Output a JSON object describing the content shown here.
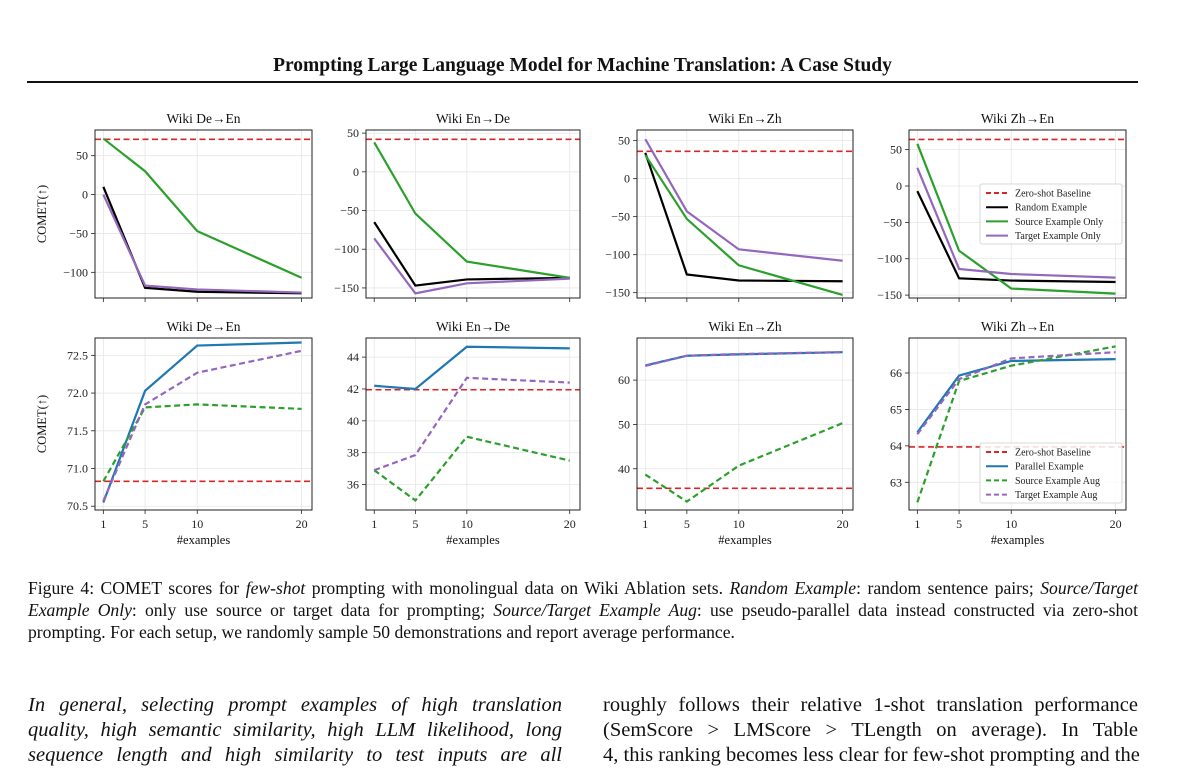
{
  "header": {
    "title": "Prompting Large Language Model for Machine Translation: A Case Study"
  },
  "colors": {
    "baseline": "#d62728",
    "random": "#000000",
    "source": "#2ca02c",
    "target": "#9467bd",
    "parallel": "#1f77b4"
  },
  "chart_data": [
    {
      "type": "line",
      "title": "Wiki De→En",
      "ylabel": "COMET(↑)",
      "xlabel": "",
      "x": [
        1,
        5,
        10,
        20
      ],
      "ylim": [
        -133,
        83
      ],
      "yticks": [
        -100,
        -50,
        0,
        50
      ],
      "yticklabels": [
        "−100",
        "−50",
        "0",
        "50"
      ],
      "grid": true,
      "series": [
        {
          "name": "Zero-shot Baseline",
          "style": "dashed",
          "color": "#d62728",
          "baseline": 71
        },
        {
          "name": "Random Example",
          "style": "solid",
          "color": "#000000",
          "values": [
            10,
            -120,
            -125,
            -127
          ]
        },
        {
          "name": "Source Example Only",
          "style": "solid",
          "color": "#2ca02c",
          "values": [
            72,
            30,
            -47,
            -107
          ]
        },
        {
          "name": "Target Example Only",
          "style": "solid",
          "color": "#9467bd",
          "values": [
            0,
            -117,
            -122,
            -126
          ]
        }
      ]
    },
    {
      "type": "line",
      "title": "Wiki En→De",
      "ylabel": "",
      "xlabel": "",
      "x": [
        1,
        5,
        10,
        20
      ],
      "ylim": [
        -163,
        54
      ],
      "yticks": [
        -150,
        -100,
        -50,
        0,
        50
      ],
      "yticklabels": [
        "−150",
        "−100",
        "−50",
        "0",
        "50"
      ],
      "grid": true,
      "series": [
        {
          "name": "Zero-shot Baseline",
          "style": "dashed",
          "color": "#d62728",
          "baseline": 42
        },
        {
          "name": "Random Example",
          "style": "solid",
          "color": "#000000",
          "values": [
            -65,
            -147,
            -139,
            -137
          ]
        },
        {
          "name": "Source Example Only",
          "style": "solid",
          "color": "#2ca02c",
          "values": [
            38,
            -54,
            -116,
            -137
          ]
        },
        {
          "name": "Target Example Only",
          "style": "solid",
          "color": "#9467bd",
          "values": [
            -86,
            -157,
            -144,
            -138
          ]
        }
      ]
    },
    {
      "type": "line",
      "title": "Wiki En→Zh",
      "ylabel": "",
      "xlabel": "",
      "x": [
        1,
        5,
        10,
        20
      ],
      "ylim": [
        -157,
        64
      ],
      "yticks": [
        -150,
        -100,
        -50,
        0,
        50
      ],
      "yticklabels": [
        "−150",
        "−100",
        "−50",
        "0",
        "50"
      ],
      "grid": true,
      "series": [
        {
          "name": "Zero-shot Baseline",
          "style": "dashed",
          "color": "#d62728",
          "baseline": 36
        },
        {
          "name": "Random Example",
          "style": "solid",
          "color": "#000000",
          "values": [
            34,
            -126,
            -134,
            -135
          ]
        },
        {
          "name": "Source Example Only",
          "style": "solid",
          "color": "#2ca02c",
          "values": [
            31,
            -53,
            -114,
            -153
          ]
        },
        {
          "name": "Target Example Only",
          "style": "solid",
          "color": "#9467bd",
          "values": [
            52,
            -43,
            -93,
            -108
          ]
        }
      ]
    },
    {
      "type": "line",
      "title": "Wiki Zh→En",
      "ylabel": "",
      "xlabel": "",
      "x": [
        1,
        5,
        10,
        20
      ],
      "ylim": [
        -154,
        77
      ],
      "yticks": [
        -150,
        -100,
        -50,
        0,
        50
      ],
      "yticklabels": [
        "−150",
        "−100",
        "−50",
        "0",
        "50"
      ],
      "grid": true,
      "legend": "center-right",
      "series": [
        {
          "name": "Zero-shot Baseline",
          "style": "dashed",
          "color": "#d62728",
          "baseline": 64
        },
        {
          "name": "Random Example",
          "style": "solid",
          "color": "#000000",
          "values": [
            -7,
            -127,
            -130,
            -132
          ]
        },
        {
          "name": "Source Example Only",
          "style": "solid",
          "color": "#2ca02c",
          "values": [
            58,
            -89,
            -141,
            -148
          ]
        },
        {
          "name": "Target Example Only",
          "style": "solid",
          "color": "#9467bd",
          "values": [
            25,
            -114,
            -121,
            -126
          ]
        }
      ]
    },
    {
      "type": "line",
      "title": "Wiki De→En",
      "ylabel": "COMET(↑)",
      "xlabel": "#examples",
      "x": [
        1,
        5,
        10,
        20
      ],
      "xticklabels": [
        "1",
        "5",
        "10",
        "20"
      ],
      "ylim": [
        70.45,
        72.73
      ],
      "yticks": [
        70.5,
        71.0,
        71.5,
        72.0,
        72.5
      ],
      "yticklabels": [
        "70.5",
        "71.0",
        "71.5",
        "72.0",
        "72.5"
      ],
      "grid": true,
      "series": [
        {
          "name": "Zero-shot Baseline",
          "style": "dashed",
          "color": "#d62728",
          "baseline": 70.83
        },
        {
          "name": "Parallel Example",
          "style": "solid",
          "color": "#1f77b4",
          "values": [
            70.55,
            72.03,
            72.63,
            72.67
          ]
        },
        {
          "name": "Source Example Aug",
          "style": "dashed",
          "color": "#2ca02c",
          "values": [
            70.83,
            71.81,
            71.85,
            71.79
          ]
        },
        {
          "name": "Target Example Aug",
          "style": "dashed",
          "color": "#9467bd",
          "values": [
            70.57,
            71.85,
            72.27,
            72.56
          ]
        }
      ]
    },
    {
      "type": "line",
      "title": "Wiki En→De",
      "ylabel": "",
      "xlabel": "#examples",
      "x": [
        1,
        5,
        10,
        20
      ],
      "xticklabels": [
        "1",
        "5",
        "10",
        "20"
      ],
      "ylim": [
        34.4,
        45.2
      ],
      "yticks": [
        36,
        38,
        40,
        42,
        44
      ],
      "yticklabels": [
        "36",
        "38",
        "40",
        "42",
        "44"
      ],
      "grid": true,
      "series": [
        {
          "name": "Zero-shot Baseline",
          "style": "dashed",
          "color": "#d62728",
          "baseline": 41.95
        },
        {
          "name": "Parallel Example",
          "style": "solid",
          "color": "#1f77b4",
          "values": [
            42.2,
            42.0,
            44.65,
            44.55
          ]
        },
        {
          "name": "Source Example Aug",
          "style": "dashed",
          "color": "#2ca02c",
          "values": [
            36.9,
            35.0,
            39.0,
            37.5
          ]
        },
        {
          "name": "Target Example Aug",
          "style": "dashed",
          "color": "#9467bd",
          "values": [
            36.9,
            37.85,
            42.7,
            42.4
          ]
        }
      ]
    },
    {
      "type": "line",
      "title": "Wiki En→Zh",
      "ylabel": "",
      "xlabel": "#examples",
      "x": [
        1,
        5,
        10,
        20
      ],
      "xticklabels": [
        "1",
        "5",
        "10",
        "20"
      ],
      "ylim": [
        30.7,
        69.5
      ],
      "yticks": [
        40,
        50,
        60
      ],
      "yticklabels": [
        "40",
        "50",
        "60"
      ],
      "grid": true,
      "series": [
        {
          "name": "Zero-shot Baseline",
          "style": "dashed",
          "color": "#d62728",
          "baseline": 35.6
        },
        {
          "name": "Parallel Example",
          "style": "solid",
          "color": "#1f77b4",
          "values": [
            63.3,
            65.5,
            65.8,
            66.3
          ]
        },
        {
          "name": "Source Example Aug",
          "style": "dashed",
          "color": "#2ca02c",
          "values": [
            38.7,
            32.6,
            40.7,
            50.3
          ]
        },
        {
          "name": "Target Example Aug",
          "style": "dashed",
          "color": "#9467bd",
          "values": [
            63.2,
            65.5,
            65.9,
            66.3
          ]
        }
      ]
    },
    {
      "type": "line",
      "title": "Wiki Zh→En",
      "ylabel": "",
      "xlabel": "#examples",
      "x": [
        1,
        5,
        10,
        20
      ],
      "xticklabels": [
        "1",
        "5",
        "10",
        "20"
      ],
      "ylim": [
        62.24,
        66.96
      ],
      "yticks": [
        63,
        64,
        65,
        66
      ],
      "yticklabels": [
        "63",
        "64",
        "65",
        "66"
      ],
      "grid": true,
      "legend": "lower-right",
      "series": [
        {
          "name": "Zero-shot Baseline",
          "style": "dashed",
          "color": "#d62728",
          "baseline": 63.97
        },
        {
          "name": "Parallel Example",
          "style": "solid",
          "color": "#1f77b4",
          "values": [
            64.37,
            65.93,
            66.33,
            66.38
          ]
        },
        {
          "name": "Source Example Aug",
          "style": "dashed",
          "color": "#2ca02c",
          "values": [
            62.45,
            65.78,
            66.2,
            66.73
          ]
        },
        {
          "name": "Target Example Aug",
          "style": "dashed",
          "color": "#9467bd",
          "values": [
            64.32,
            65.83,
            66.4,
            66.57
          ]
        }
      ]
    }
  ],
  "caption": {
    "label": "Figure 4:  COMET scores for ",
    "i1": "few-shot",
    "t1": " prompting with monolingual data on Wiki Ablation sets. ",
    "i2": "Random Example",
    "t2": ": random sentence pairs; ",
    "i3": "Source/Target Example Only",
    "t3": ": only use source or target data for prompting; ",
    "i4": "Source/Target Example Aug",
    "t4": ": use pseudo-parallel data instead constructed via zero-shot prompting. For each setup, we randomly sample 50 demonstrations and report average performance."
  },
  "body": {
    "left": [
      "In general, selecting prompt examples of high translation",
      "quality, high semantic similarity, high LLM likelihood, long",
      "sequence length and high similarity to test inputs are all"
    ],
    "right": [
      "roughly follows their relative 1-shot translation performance",
      "(SemScore > LMScore > TLength on average).  In Table",
      "4, this ranking becomes less clear for few-shot prompting and the"
    ]
  }
}
